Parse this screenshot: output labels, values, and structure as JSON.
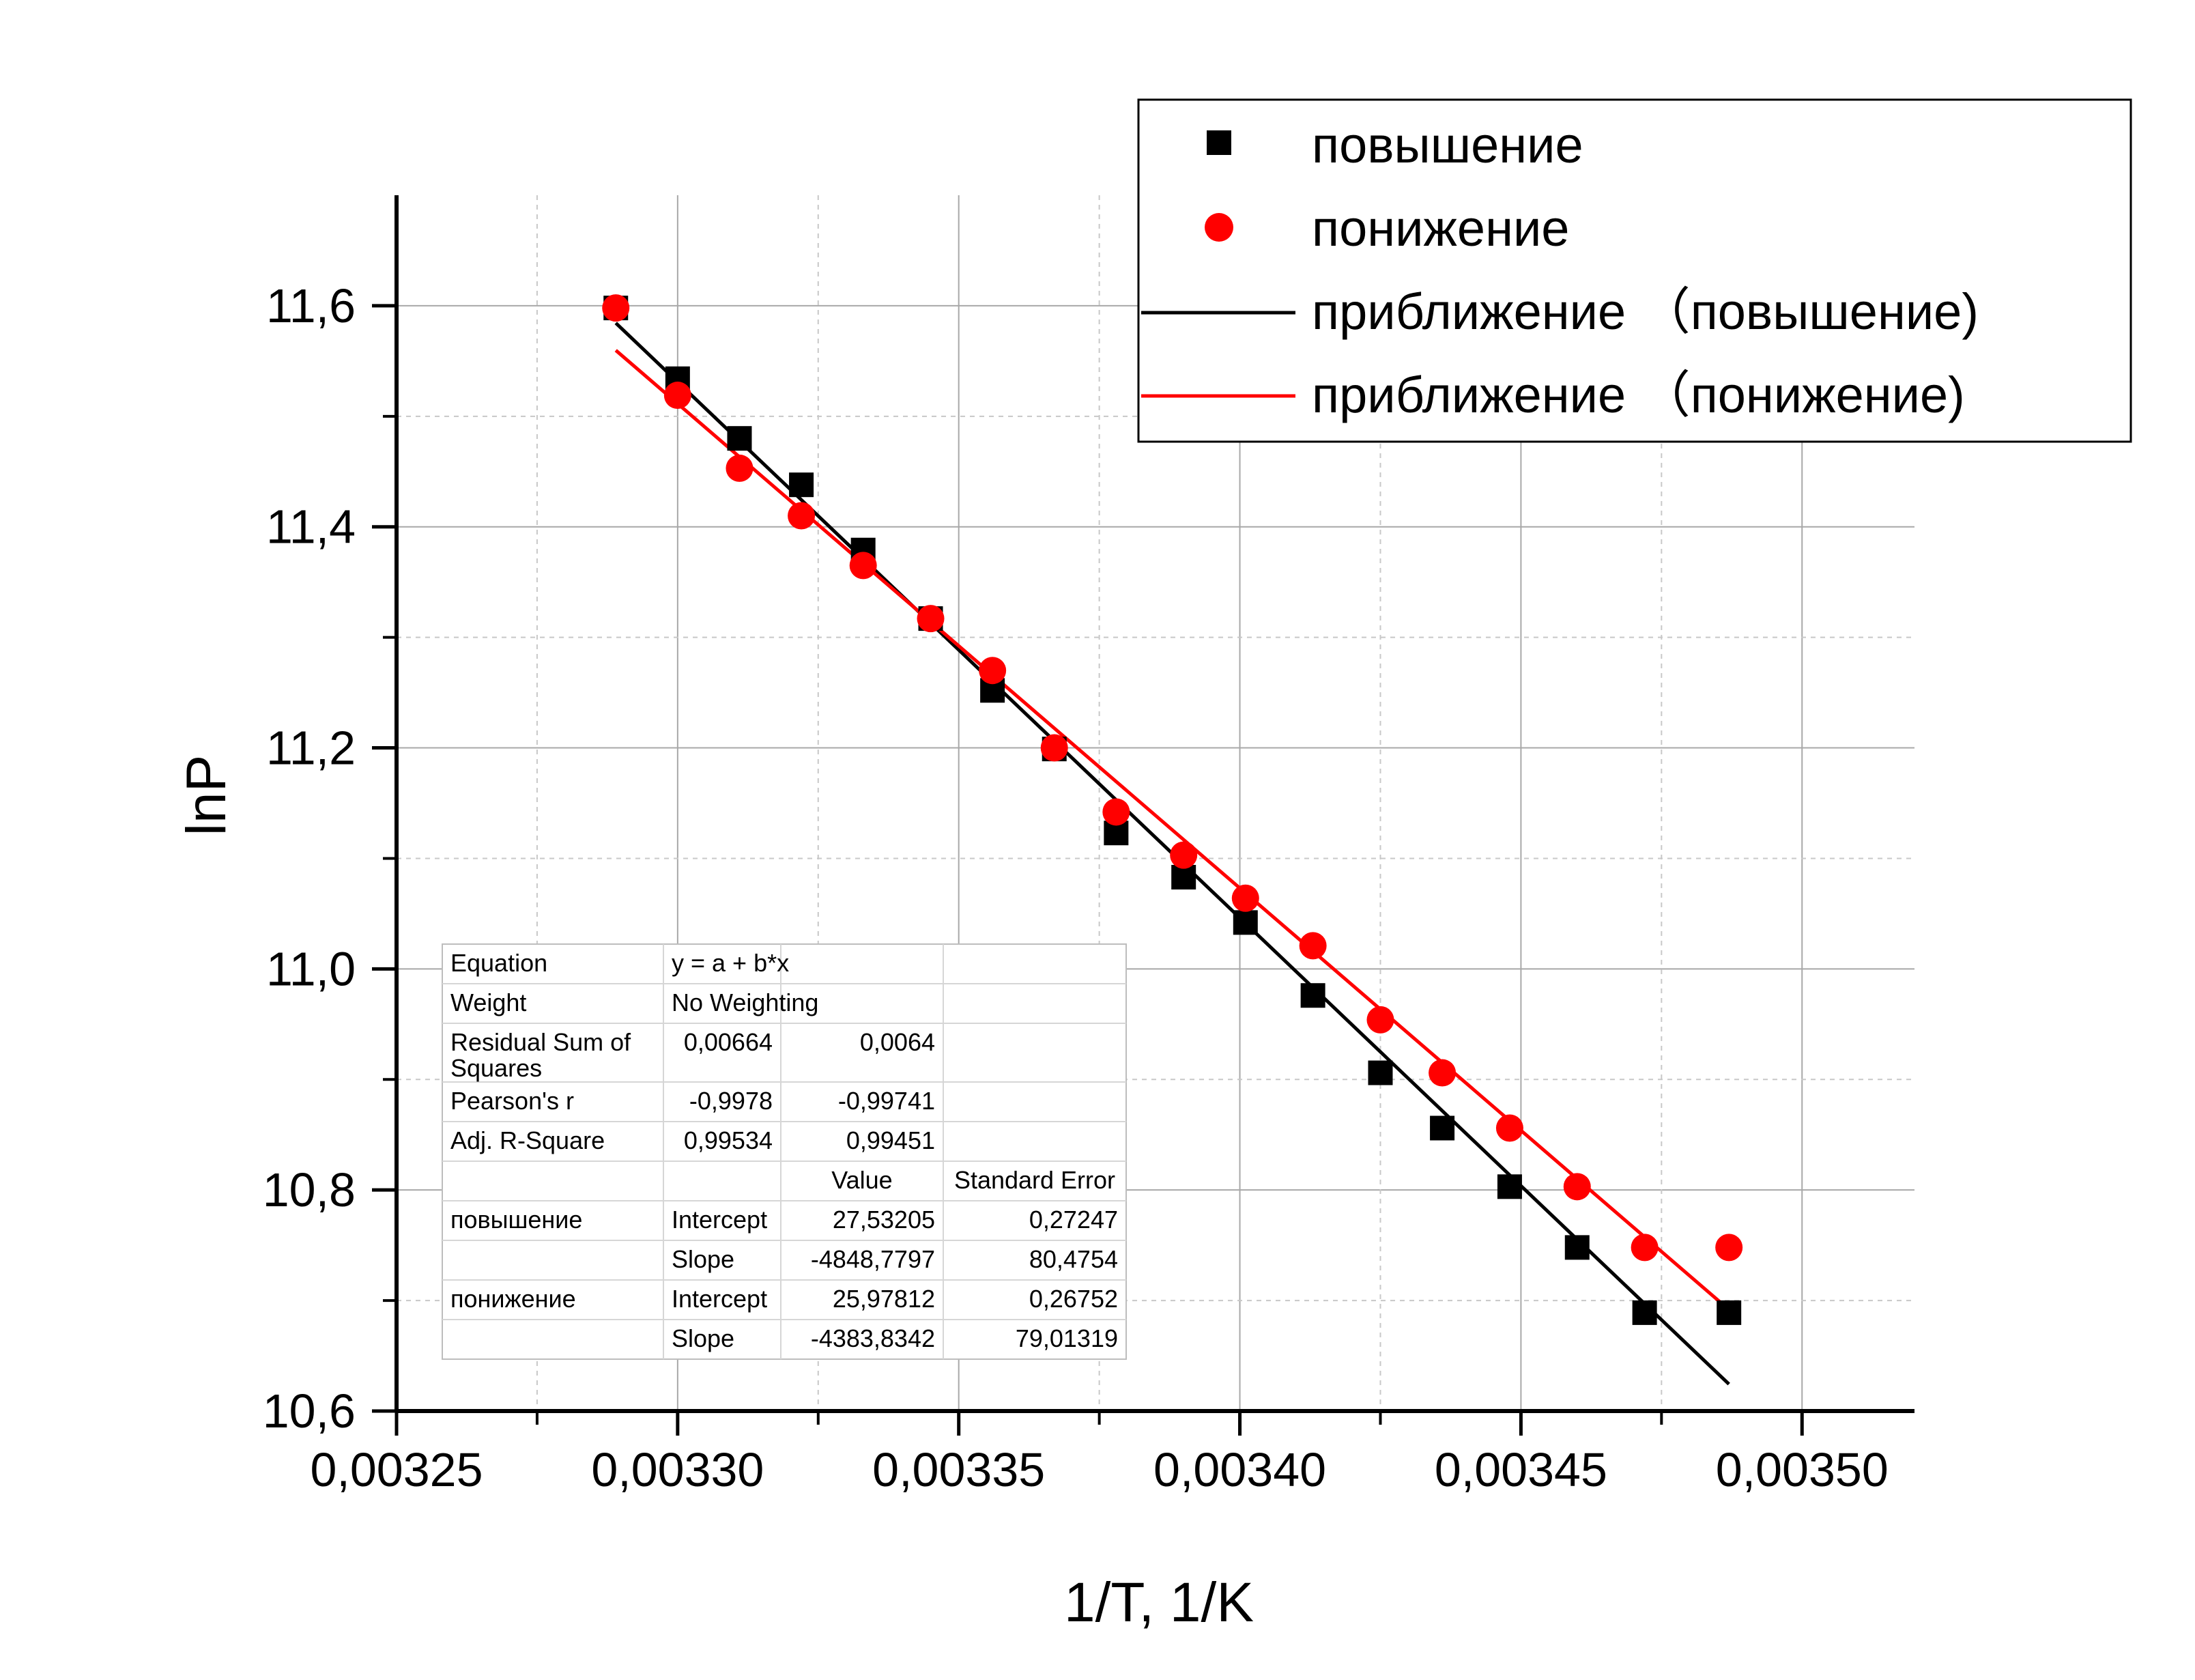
{
  "chart_data": {
    "type": "scatter",
    "xlabel": "1/T, 1/K",
    "ylabel": "lnP",
    "xlim": [
      0.00325,
      0.00352
    ],
    "ylim": [
      10.6,
      11.7
    ],
    "x_ticks": [
      0.00325,
      0.0033,
      0.00335,
      0.0034,
      0.00345,
      0.0035
    ],
    "x_tick_labels": [
      "0,00325",
      "0,00330",
      "0,00335",
      "0,00340",
      "0,00345",
      "0,00350"
    ],
    "y_ticks": [
      10.6,
      10.8,
      11.0,
      11.2,
      11.4,
      11.6
    ],
    "y_tick_labels": [
      "10,6",
      "10,8",
      "11,0",
      "11,2",
      "11,4",
      "11,6"
    ],
    "grid": true,
    "legend_position": "top-right",
    "series": [
      {
        "name": "повышение",
        "marker": "square",
        "color": "#000000",
        "points": [
          [
            0.003289,
            11.598
          ],
          [
            0.0033,
            11.534
          ],
          [
            0.003311,
            11.48
          ],
          [
            0.003322,
            11.438
          ],
          [
            0.003333,
            11.379
          ],
          [
            0.003345,
            11.317
          ],
          [
            0.003356,
            11.252
          ],
          [
            0.003367,
            11.199
          ],
          [
            0.003378,
            11.123
          ],
          [
            0.00339,
            11.083
          ],
          [
            0.003401,
            11.042
          ],
          [
            0.003413,
            10.976
          ],
          [
            0.003425,
            10.906
          ],
          [
            0.003436,
            10.856
          ],
          [
            0.003448,
            10.803
          ],
          [
            0.00346,
            10.748
          ],
          [
            0.003472,
            10.689
          ],
          [
            0.003487,
            10.689
          ]
        ]
      },
      {
        "name": "понижение",
        "marker": "circle",
        "color": "#ff0000",
        "points": [
          [
            0.003289,
            11.598
          ],
          [
            0.0033,
            11.519
          ],
          [
            0.003311,
            11.453
          ],
          [
            0.003322,
            11.41
          ],
          [
            0.003333,
            11.365
          ],
          [
            0.003345,
            11.317
          ],
          [
            0.003356,
            11.27
          ],
          [
            0.003367,
            11.2
          ],
          [
            0.003378,
            11.142
          ],
          [
            0.00339,
            11.103
          ],
          [
            0.003401,
            11.064
          ],
          [
            0.003413,
            11.021
          ],
          [
            0.003425,
            10.954
          ],
          [
            0.003436,
            10.906
          ],
          [
            0.003448,
            10.856
          ],
          [
            0.00346,
            10.803
          ],
          [
            0.003472,
            10.748
          ],
          [
            0.003487,
            10.748
          ]
        ]
      }
    ],
    "fits": [
      {
        "name": "приближение （повышение)",
        "color": "#000000",
        "intercept": 27.53205,
        "slope": -4848.7797,
        "x_range": [
          0.003289,
          0.003487
        ]
      },
      {
        "name": "приближение （понижение)",
        "color": "#ff0000",
        "intercept": 25.97812,
        "slope": -4383.8342,
        "x_range": [
          0.003289,
          0.003487
        ]
      }
    ],
    "table": {
      "rows": [
        [
          "Equation",
          "y = a + b*x",
          "",
          ""
        ],
        [
          "Weight",
          "No Weighting",
          "",
          ""
        ],
        [
          "Residual Sum of Squares",
          "0,00664",
          "0,0064",
          ""
        ],
        [
          "Pearson's r",
          "-0,9978",
          "-0,99741",
          ""
        ],
        [
          "Adj. R-Square",
          "0,99534",
          "0,99451",
          ""
        ],
        [
          "",
          "",
          "Value",
          "Standard Error"
        ],
        [
          "повышение",
          "Intercept",
          "27,53205",
          "0,27247"
        ],
        [
          "",
          "Slope",
          "-4848,7797",
          "80,4754"
        ],
        [
          "понижение",
          "Intercept",
          "25,97812",
          "0,26752"
        ],
        [
          "",
          "Slope",
          "-4383,8342",
          "79,01319"
        ]
      ]
    }
  }
}
